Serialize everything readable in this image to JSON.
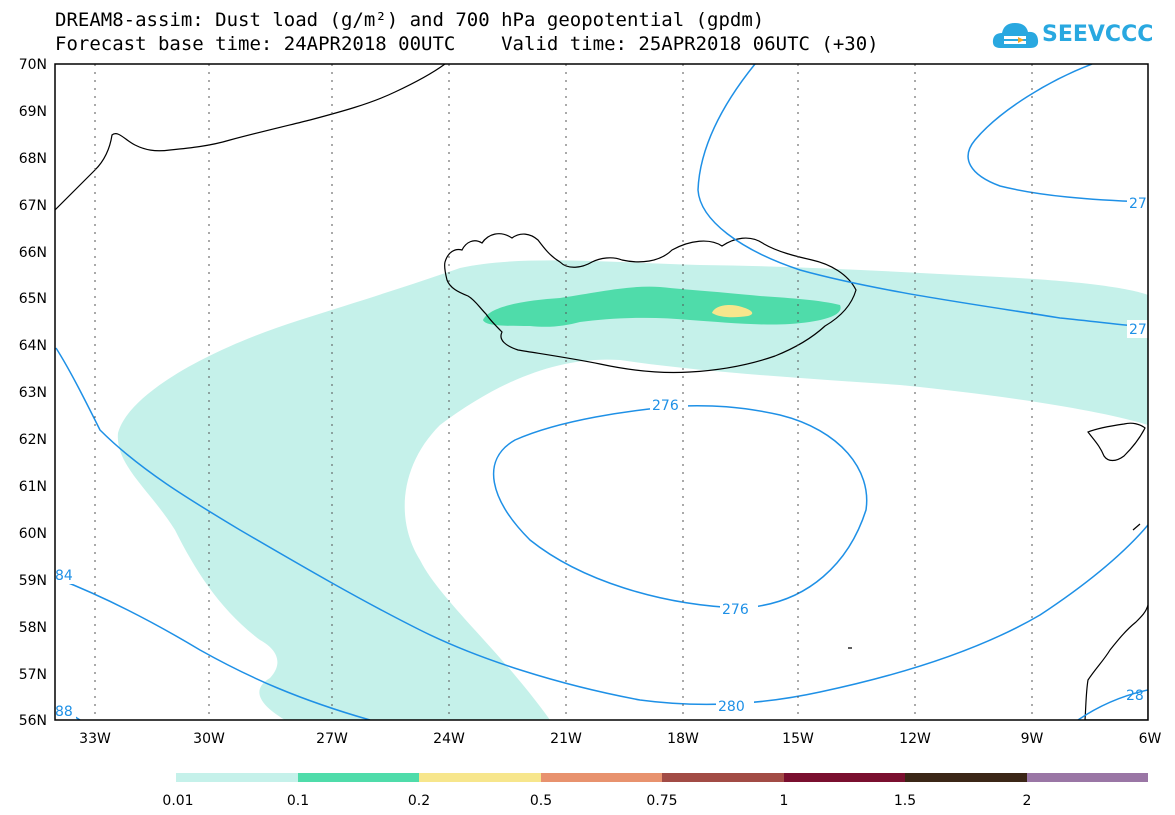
{
  "title": {
    "line1": "DREAM8-assim: Dust load (g/m²) and 700 hPa geopotential (gpdm)",
    "line2": "Forecast base time: 24APR2018 00UTC    Valid time: 25APR2018 06UTC (+30)"
  },
  "logo": {
    "text": "SEEVCCC",
    "icon": "cloud-logo-icon"
  },
  "map": {
    "lat_labels": [
      "70N",
      "69N",
      "68N",
      "67N",
      "66N",
      "65N",
      "64N",
      "63N",
      "62N",
      "61N",
      "60N",
      "59N",
      "58N",
      "57N",
      "56N"
    ],
    "lon_labels": [
      "33W",
      "30W",
      "27W",
      "24W",
      "21W",
      "18W",
      "15W",
      "12W",
      "9W",
      "6W"
    ],
    "contour_labels": [
      "276",
      "276",
      "280",
      "27",
      "27",
      "84",
      "88",
      "28"
    ],
    "contour_color": "#1e90e6",
    "coastline_color": "#000000"
  },
  "colorbar": {
    "labels": [
      "0.01",
      "0.1",
      "0.2",
      "0.5",
      "0.75",
      "1",
      "1.5",
      "2"
    ],
    "colors": [
      "#c5f1ea",
      "#4fdcaa",
      "#f7e68c",
      "#e8926e",
      "#a24b45",
      "#7a0f2f",
      "#3b2616",
      "#9a76a5"
    ]
  }
}
